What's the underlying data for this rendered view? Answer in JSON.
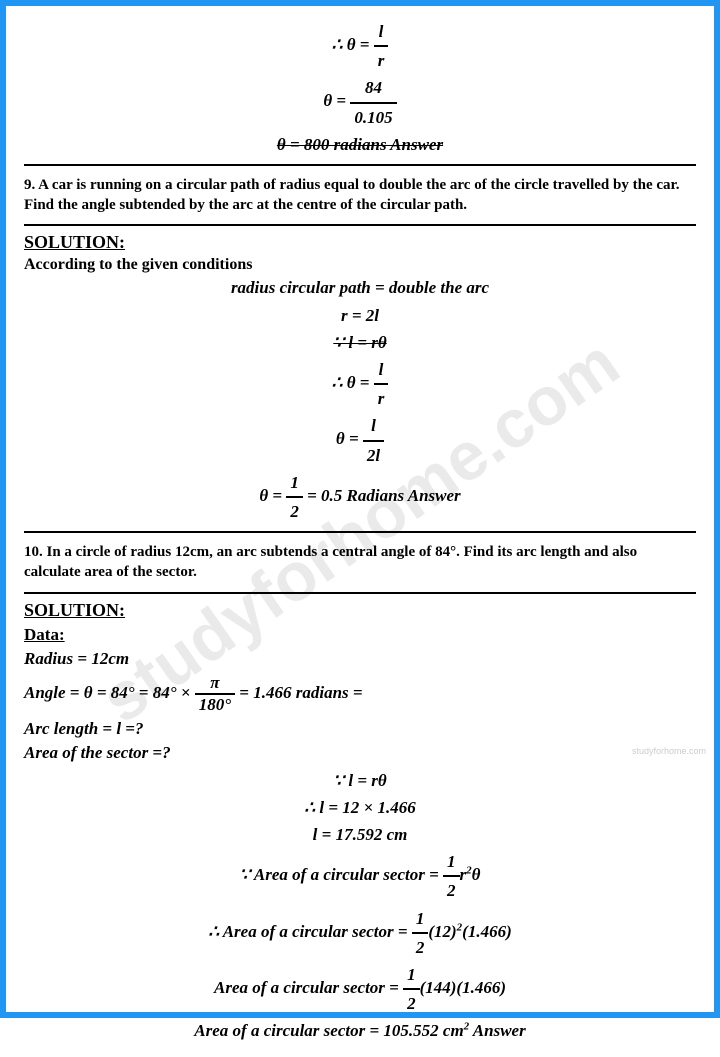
{
  "watermark": "studyforhome.com",
  "top_math": {
    "line1_lhs": "∴ θ =",
    "line1_num": "l",
    "line1_den": "r",
    "line2_lhs": "θ =",
    "line2_num": "84",
    "line2_den": "0.105",
    "line3": "θ = 800 radians   Answer"
  },
  "q9": {
    "text": "9. A car is running on a circular path of radius equal to double the arc of the circle travelled by the car. Find the angle subtended by the arc at the centre of the circular path.",
    "sol": "SOLUTION:",
    "intro": "According to the given conditions",
    "m1": "radius circular path = double the arc",
    "m2": "r = 2l",
    "m3": "∵ l = rθ",
    "m4_lhs": "∴ θ =",
    "m4_num": "l",
    "m4_den": "r",
    "m5_lhs": "θ =",
    "m5_num": "l",
    "m5_den": "2l",
    "m6_lhs": "θ =",
    "m6_num": "1",
    "m6_den": "2",
    "m6_rhs": "= 0.5 Radians   Answer"
  },
  "q10": {
    "text": "10. In a circle of radius 12cm, an arc subtends a central angle of 84°. Find its arc length and also calculate area of the sector.",
    "sol": "SOLUTION:",
    "data": "Data:",
    "d1": "Radius = 12cm",
    "d2_a": "Angle = θ = 84° = 84° ×",
    "d2_num": "π",
    "d2_den": "180°",
    "d2_b": "= 1.466 radians =",
    "d3": "Arc length = l =?",
    "d4": "Area of the sector =?",
    "c1": "∵ l = rθ",
    "c2": "∴ l = 12 × 1.466",
    "c3": "l = 17.592 cm",
    "c4_a": "∵ Area of a circular sector =",
    "c4_num": "1",
    "c4_den": "2",
    "c4_b": "r",
    "c4_sup": "2",
    "c4_c": "θ",
    "c5_a": "∴ Area of a circular sector =",
    "c5_num": "1",
    "c5_den": "2",
    "c5_b": "(12)",
    "c5_sup": "2",
    "c5_c": "(1.466)",
    "c6_a": "Area of a circular sector =",
    "c6_num": "1",
    "c6_den": "2",
    "c6_b": "(144)(1.466)",
    "c7_a": "Area of a circular sector = 105.552 cm",
    "c7_sup": "2",
    "c7_b": "   Answer"
  },
  "small_wm": "studyforhome.com"
}
